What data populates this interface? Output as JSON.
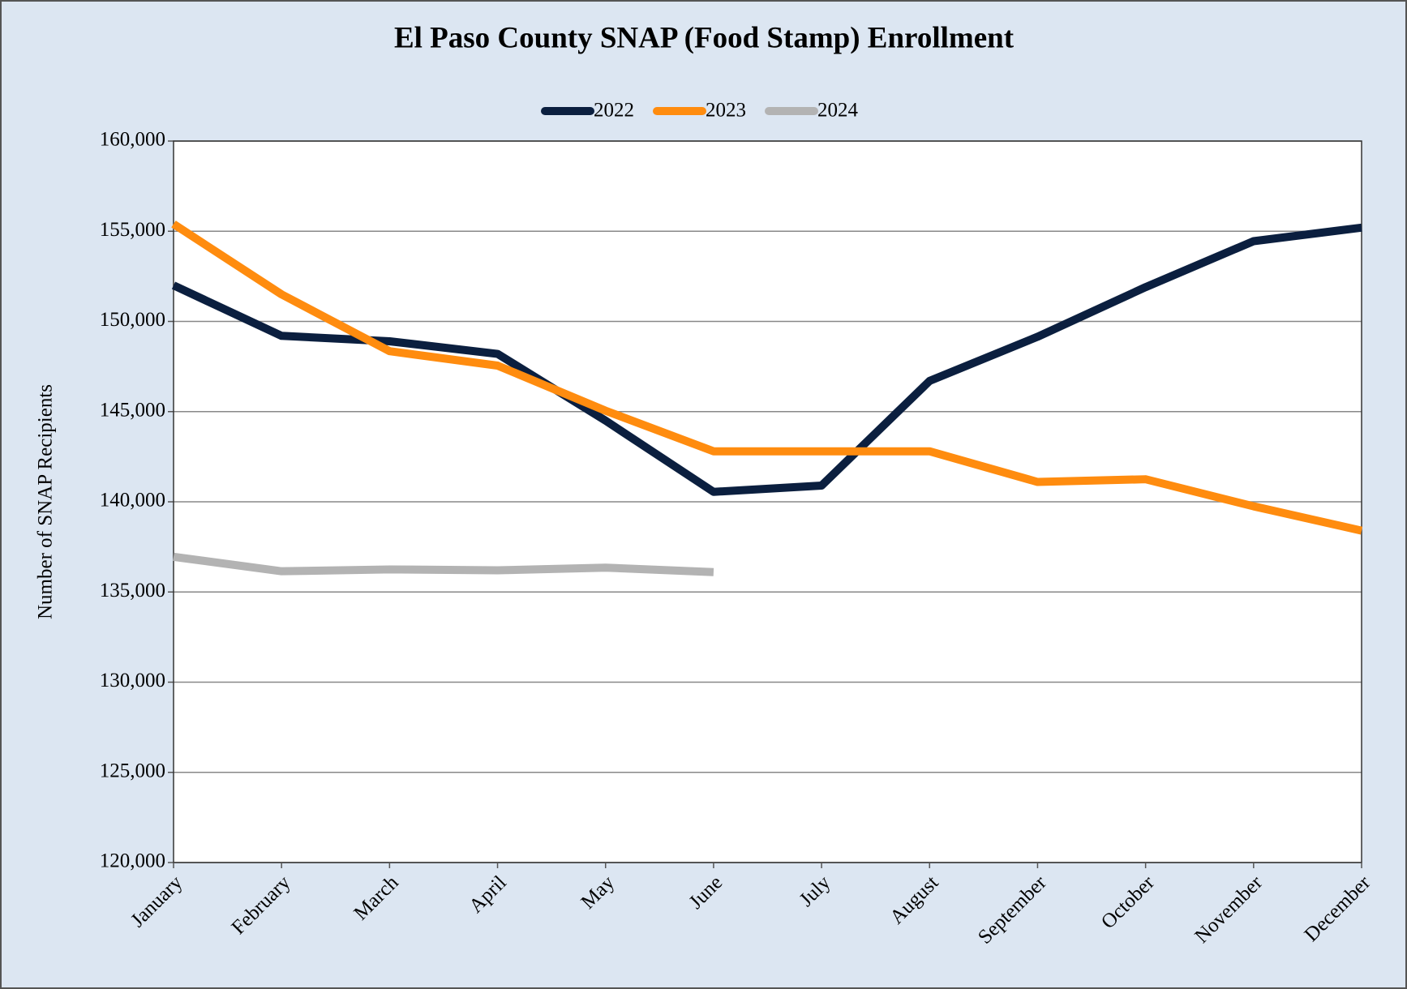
{
  "chart_data": {
    "type": "line",
    "title": "El Paso County SNAP (Food Stamp) Enrollment",
    "y_label": "Number of SNAP Recipients",
    "categories": [
      "January",
      "February",
      "March",
      "April",
      "May",
      "June",
      "July",
      "August",
      "September",
      "October",
      "November",
      "December"
    ],
    "series": [
      {
        "name": "2022",
        "color": "#0b1f3f",
        "values": [
          152000,
          149200,
          148900,
          148200,
          144500,
          140550,
          140900,
          146700,
          149150,
          151900,
          154450,
          155200
        ]
      },
      {
        "name": "2023",
        "color": "#ff8c0f",
        "values": [
          155400,
          151500,
          148350,
          147550,
          145050,
          142800,
          142800,
          142800,
          141100,
          141250,
          139750,
          138400
        ]
      },
      {
        "name": "2024",
        "color": "#b3b3b3",
        "values": [
          136950,
          136150,
          136250,
          136200,
          136350,
          136100,
          null,
          null,
          null,
          null,
          null,
          null
        ]
      }
    ],
    "ylim": [
      120000,
      160000
    ],
    "yticks": [
      {
        "value": 120000,
        "label": "120,000"
      },
      {
        "value": 125000,
        "label": "125,000"
      },
      {
        "value": 130000,
        "label": "130,000"
      },
      {
        "value": 135000,
        "label": "135,000"
      },
      {
        "value": 140000,
        "label": "140,000"
      },
      {
        "value": 145000,
        "label": "145,000"
      },
      {
        "value": 150000,
        "label": "150,000"
      },
      {
        "value": 155000,
        "label": "155,000"
      },
      {
        "value": 160000,
        "label": "160,000"
      }
    ],
    "grid": true,
    "legend": "top"
  }
}
